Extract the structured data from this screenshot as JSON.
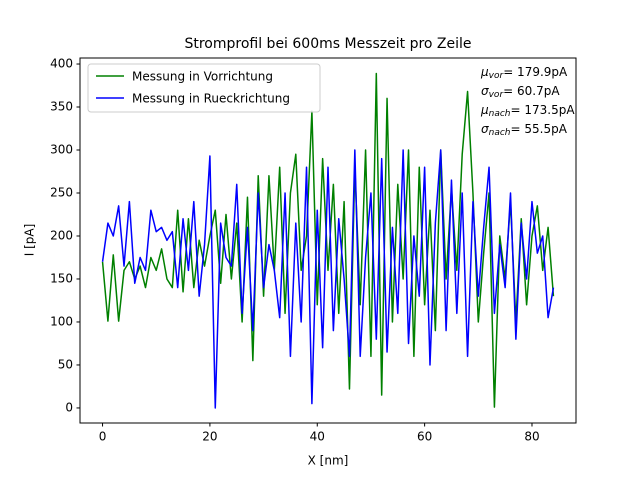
{
  "chart_data": {
    "type": "line",
    "title": "Stromprofil bei  600ms Messzeit pro Zeile",
    "x_label": "X [nm]",
    "y_label": "I [pA]",
    "x": [
      0,
      1,
      2,
      3,
      4,
      5,
      6,
      7,
      8,
      9,
      10,
      11,
      12,
      13,
      14,
      15,
      16,
      17,
      18,
      19,
      20,
      21,
      22,
      23,
      24,
      25,
      26,
      27,
      28,
      29,
      30,
      31,
      32,
      33,
      34,
      35,
      36,
      37,
      38,
      39,
      40,
      41,
      42,
      43,
      44,
      45,
      46,
      47,
      48,
      49,
      50,
      51,
      52,
      53,
      54,
      55,
      56,
      57,
      58,
      59,
      60,
      61,
      62,
      63,
      64,
      65,
      66,
      67,
      68,
      69,
      70,
      71,
      72,
      73,
      74,
      75,
      76,
      77,
      78,
      79,
      80,
      81,
      82,
      83,
      84
    ],
    "series": [
      {
        "name": "Messung in Vorrichtung",
        "color": "#008000",
        "values": [
          170,
          101,
          178,
          101,
          160,
          170,
          150,
          165,
          140,
          175,
          160,
          185,
          150,
          140,
          230,
          135,
          220,
          140,
          195,
          165,
          200,
          230,
          145,
          225,
          150,
          215,
          100,
          245,
          55,
          270,
          130,
          270,
          160,
          280,
          110,
          250,
          295,
          160,
          200,
          345,
          120,
          290,
          160,
          260,
          110,
          240,
          22,
          280,
          120,
          300,
          60,
          389,
          15,
          360,
          100,
          260,
          150,
          300,
          60,
          280,
          120,
          230,
          90,
          300,
          150,
          255,
          160,
          295,
          368,
          250,
          100,
          180,
          250,
          1,
          200,
          150,
          240,
          100,
          220,
          120,
          200,
          235,
          160,
          210,
          130
        ]
      },
      {
        "name": "Messung in Rueckrichtung",
        "color": "#0000ff",
        "values": [
          170,
          215,
          200,
          235,
          165,
          240,
          145,
          175,
          160,
          230,
          205,
          210,
          195,
          205,
          140,
          220,
          160,
          240,
          130,
          190,
          293,
          0,
          215,
          175,
          165,
          260,
          110,
          210,
          90,
          250,
          140,
          190,
          160,
          105,
          250,
          60,
          215,
          100,
          280,
          5,
          230,
          70,
          280,
          90,
          220,
          150,
          60,
          300,
          60,
          175,
          250,
          80,
          290,
          65,
          210,
          110,
          300,
          75,
          200,
          130,
          280,
          50,
          215,
          300,
          90,
          265,
          110,
          250,
          60,
          240,
          130,
          210,
          280,
          110,
          190,
          140,
          250,
          80,
          215,
          150,
          240,
          180,
          200,
          105,
          140
        ]
      }
    ],
    "xlim": [
      -4.2,
      88.2
    ],
    "ylim": [
      -17.5,
      407
    ],
    "xticks": [
      0,
      20,
      40,
      60,
      80
    ],
    "yticks": [
      0,
      50,
      100,
      150,
      200,
      250,
      300,
      350,
      400
    ],
    "legend": "upper left",
    "annotations": [
      {
        "symbol": "μ",
        "sub": "vor",
        "text": "= 179.9pA"
      },
      {
        "symbol": "σ",
        "sub": "vor",
        "text": "= 60.7pA"
      },
      {
        "symbol": "μ",
        "sub": "nach",
        "text": "= 173.5pA"
      },
      {
        "symbol": "σ",
        "sub": "nach",
        "text": "= 55.5pA"
      }
    ]
  }
}
